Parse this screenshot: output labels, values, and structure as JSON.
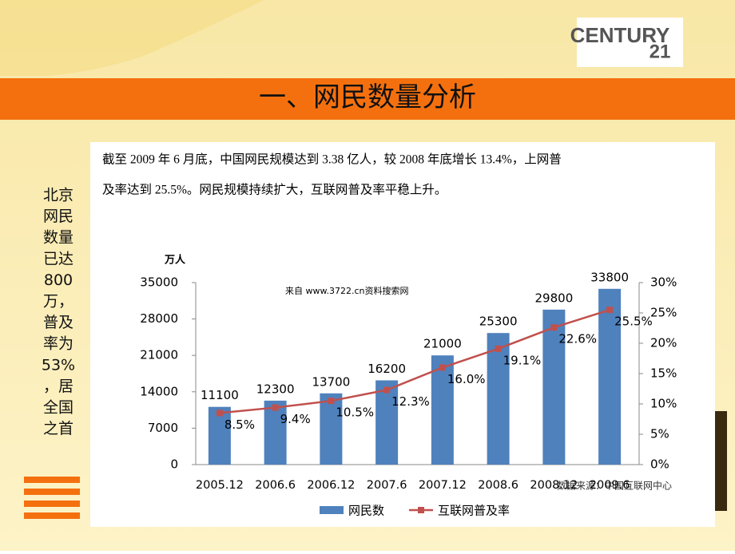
{
  "title": "一、网民数量分析",
  "logo": {
    "word": "CENTURY",
    "number": "21"
  },
  "side_note": [
    "北京",
    "网民",
    "数量",
    "已达",
    "800",
    "万，",
    "普及",
    "率为",
    "53%",
    "，居",
    "全国",
    "之首"
  ],
  "intro": [
    "截至 2009 年 6 月底，中国网民规模达到 3.38 亿人，较 2008 年底增长 13.4%，上网普",
    "及率达到 25.5%。网民规模持续扩大，互联网普及率平稳上升。"
  ],
  "watermark": "来自  www.3722.cn资料搜索网",
  "source": "数据来源：中国互联网中心",
  "chart_data": {
    "type": "bar",
    "y_unit": "万人",
    "categories": [
      "2005.12",
      "2006.6",
      "2006.12",
      "2007.6",
      "2007.12",
      "2008.6",
      "2008.12",
      "2009.6"
    ],
    "series": [
      {
        "name": "网民数",
        "color": "#4f81bd",
        "values": [
          11100,
          12300,
          13700,
          16200,
          21000,
          25300,
          29800,
          33800
        ]
      },
      {
        "name": "互联网普及率",
        "color": "#c0504d",
        "axis": "y2",
        "type": "line",
        "values": [
          8.5,
          9.4,
          10.5,
          12.3,
          16.0,
          19.1,
          22.6,
          25.5
        ],
        "value_labels": [
          "8.5%",
          "9.4%",
          "10.5%",
          "12.3%",
          "16.0%",
          "19.1%",
          "22.6%",
          "25.5%"
        ]
      }
    ],
    "ylim": [
      0,
      35000
    ],
    "yticks": [
      0,
      7000,
      14000,
      21000,
      28000,
      35000
    ],
    "y2lim": [
      0,
      30
    ],
    "y2ticks": [
      {
        "value": 0,
        "label": "0%"
      },
      {
        "value": 5,
        "label": "5%"
      },
      {
        "value": 10,
        "label": "10%"
      },
      {
        "value": 15,
        "label": "15%"
      },
      {
        "value": 20,
        "label": "20%"
      },
      {
        "value": 25,
        "label": "25%"
      },
      {
        "value": 30,
        "label": "30%"
      }
    ]
  }
}
